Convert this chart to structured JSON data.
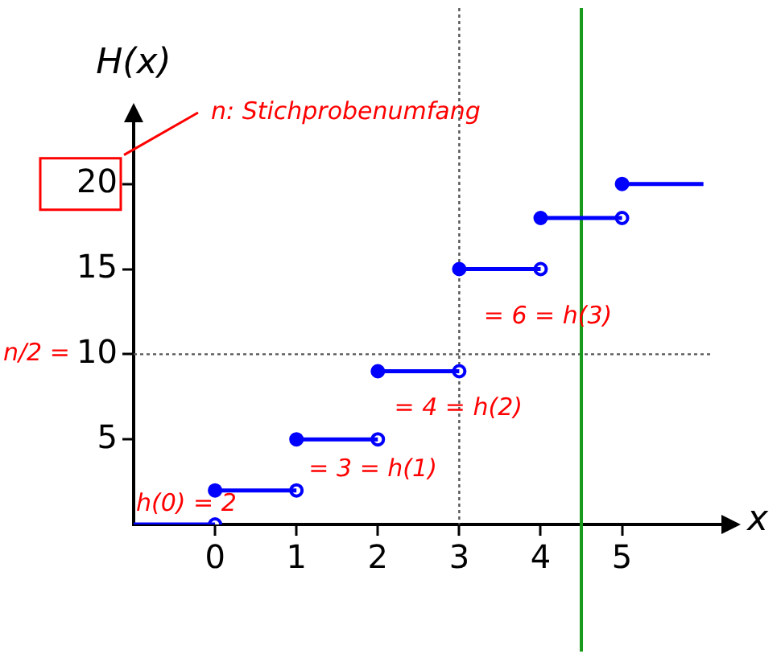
{
  "chart_data": {
    "type": "step",
    "xlabel": "x",
    "ylabel": "H(x)",
    "x": [
      -1,
      0,
      1,
      2,
      3,
      4,
      5,
      6
    ],
    "series": [
      {
        "color": "#0000ff",
        "values": [
          0,
          2,
          5,
          9,
          15,
          18,
          20,
          20
        ]
      },
      {
        "type": "scatter",
        "color": "#0000ff",
        "x": [
          0,
          1,
          2,
          3,
          4,
          5
        ],
        "values": [
          0,
          2,
          5,
          9,
          15,
          18
        ]
      }
    ],
    "marker": "circle",
    "xlim": [
      -1,
      6.3
    ],
    "xticks": [
      0,
      1,
      2,
      3,
      4,
      5
    ],
    "ylim": [
      0,
      24
    ],
    "yticks": [
      5,
      10,
      15,
      20
    ],
    "grid": false,
    "legend": false,
    "ref_lines": [
      {
        "axis": "x",
        "value": 3,
        "color": "#555555",
        "line_style": "dotted"
      },
      {
        "axis": "y",
        "value": 10,
        "color": "#555555",
        "line_style": "dotted"
      },
      {
        "axis": "x",
        "value": 4.5,
        "color": "#1a9a1a",
        "line_style": "solid"
      }
    ],
    "annotations": [
      "n: Stichprobenumfang",
      "n/2 =",
      "h(0) = 2",
      "= 3 = h(1)",
      "= 4 = h(2)",
      "= 6 = h(3)"
    ]
  }
}
